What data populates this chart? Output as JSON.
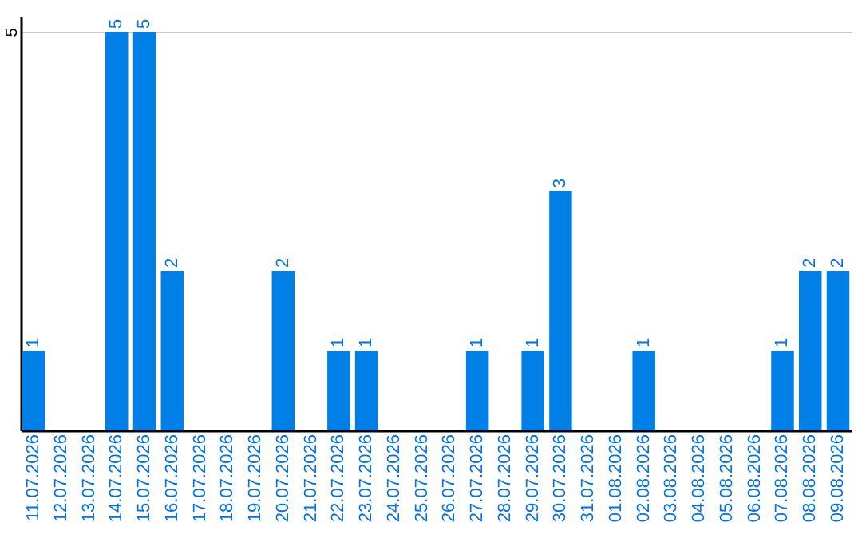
{
  "chart_data": {
    "type": "bar",
    "categories": [
      "11.07.2026",
      "12.07.2026",
      "13.07.2026",
      "14.07.2026",
      "15.07.2026",
      "16.07.2026",
      "17.07.2026",
      "18.07.2026",
      "19.07.2026",
      "20.07.2026",
      "21.07.2026",
      "22.07.2026",
      "23.07.2026",
      "24.07.2026",
      "25.07.2026",
      "26.07.2026",
      "27.07.2026",
      "28.07.2026",
      "29.07.2026",
      "30.07.2026",
      "31.07.2026",
      "01.08.2026",
      "02.08.2026",
      "03.08.2026",
      "04.08.2026",
      "05.08.2026",
      "06.08.2026",
      "07.08.2026",
      "08.08.2026",
      "09.08.2026"
    ],
    "values": [
      1,
      0,
      0,
      5,
      5,
      2,
      0,
      0,
      0,
      2,
      0,
      1,
      1,
      0,
      0,
      0,
      1,
      0,
      1,
      3,
      0,
      0,
      1,
      0,
      0,
      0,
      0,
      1,
      2,
      2
    ],
    "value_labels": [
      "1",
      null,
      null,
      "5",
      "5",
      "2",
      null,
      null,
      null,
      "2",
      null,
      "1",
      "1",
      null,
      null,
      null,
      "1",
      null,
      "1",
      "3",
      null,
      null,
      "1",
      null,
      null,
      null,
      null,
      "1",
      "2",
      "2"
    ],
    "color": "#0080e6",
    "ylim": [
      0,
      5.2
    ],
    "yticks": [
      5
    ],
    "grid": "y"
  }
}
